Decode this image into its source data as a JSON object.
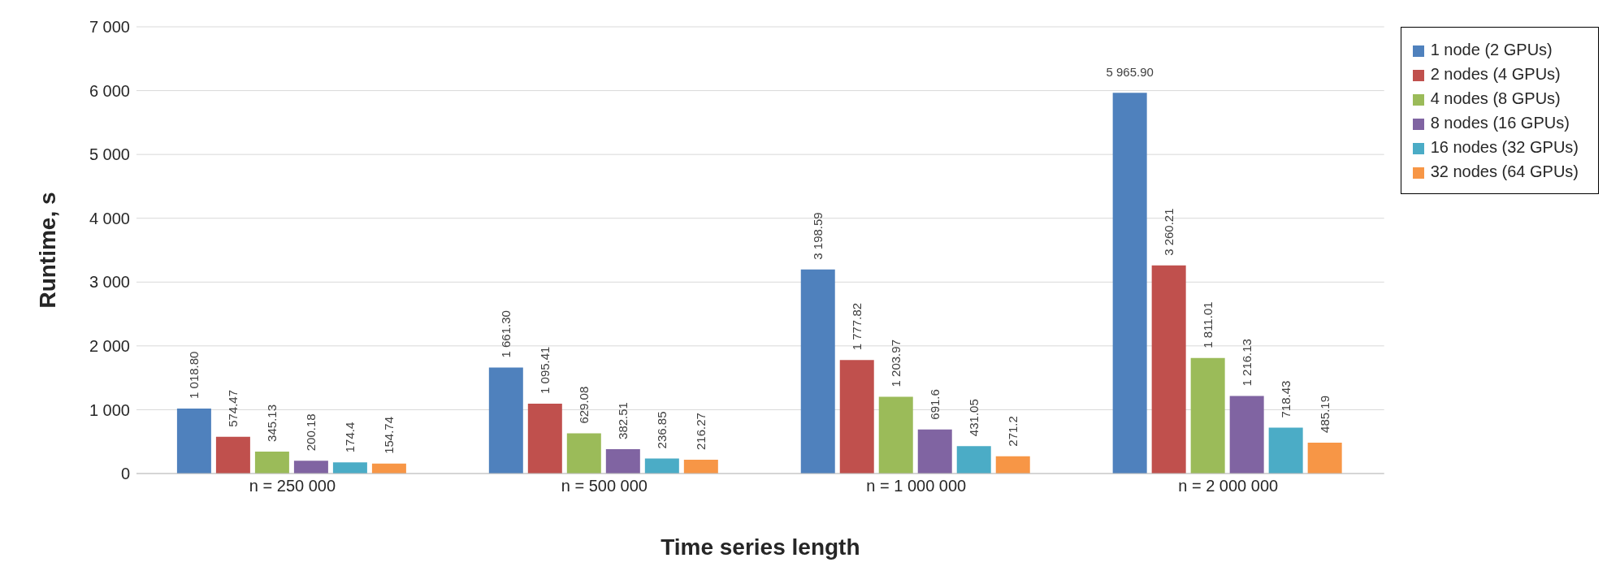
{
  "chart_data": {
    "type": "bar",
    "xlabel": "Time series length",
    "ylabel": "Runtime, s",
    "categories": [
      "n = 250 000",
      "n = 500 000",
      "n = 1 000 000",
      "n = 2 000 000"
    ],
    "series": [
      {
        "name": "1 node (2 GPUs)",
        "color": "#4f81bd",
        "values": [
          1018.8,
          1661.3,
          3198.59,
          5965.9
        ],
        "value_labels": [
          "1 018.80",
          "1 661.30",
          "3 198.59",
          "5 965.90"
        ]
      },
      {
        "name": "2 nodes (4 GPUs)",
        "color": "#c0504d",
        "values": [
          574.47,
          1095.41,
          1777.82,
          3260.21
        ],
        "value_labels": [
          "574.47",
          "1 095.41",
          "1 777.82",
          "3 260.21"
        ]
      },
      {
        "name": "4 nodes (8 GPUs)",
        "color": "#9bbb59",
        "values": [
          345.13,
          629.08,
          1203.97,
          1811.01
        ],
        "value_labels": [
          "345.13",
          "629.08",
          "1 203.97",
          "1 811.01"
        ]
      },
      {
        "name": "8 nodes (16 GPUs)",
        "color": "#8064a2",
        "values": [
          200.18,
          382.51,
          691.6,
          1216.13
        ],
        "value_labels": [
          "200.18",
          "382.51",
          "691.6",
          "1 216.13"
        ]
      },
      {
        "name": "16 nodes (32 GPUs)",
        "color": "#4bacc6",
        "values": [
          174.4,
          236.85,
          431.05,
          718.43
        ],
        "value_labels": [
          "174.4",
          "236.85",
          "431.05",
          "718.43"
        ]
      },
      {
        "name": "32 nodes (64 GPUs)",
        "color": "#f79646",
        "values": [
          154.74,
          216.27,
          271.2,
          485.19
        ],
        "value_labels": [
          "154.74",
          "216.27",
          "271.2",
          "485.19"
        ]
      }
    ],
    "ylim": [
      0,
      7000
    ],
    "yticks": [
      0,
      {
        "value": 1000,
        "label": "1 000"
      },
      {
        "value": 2000,
        "label": "2 000"
      },
      {
        "value": 3000,
        "label": "3 000"
      },
      {
        "value": 4000,
        "label": "4 000"
      },
      {
        "value": 5000,
        "label": "5 000"
      },
      {
        "value": 6000,
        "label": "6 000"
      },
      {
        "value": 7000,
        "label": "7 000"
      }
    ],
    "grid": "y",
    "legend": "right"
  }
}
